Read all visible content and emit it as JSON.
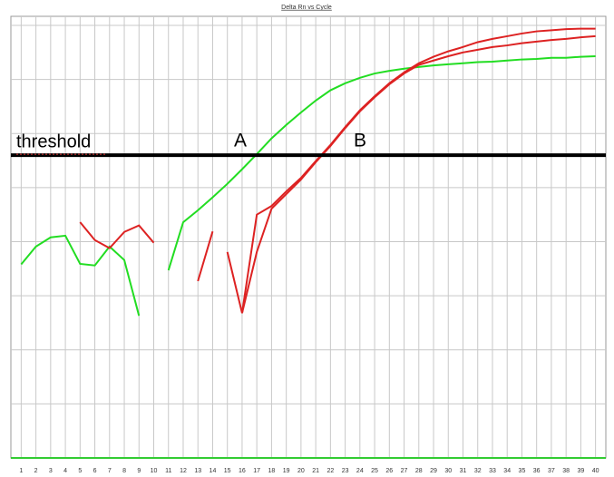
{
  "chart_data": {
    "type": "line",
    "title": "Delta Rn vs Cycle",
    "x": [
      1,
      2,
      3,
      4,
      5,
      6,
      7,
      8,
      9,
      10,
      11,
      12,
      13,
      14,
      15,
      16,
      17,
      18,
      19,
      20,
      21,
      22,
      23,
      24,
      25,
      26,
      27,
      28,
      29,
      30,
      31,
      32,
      33,
      34,
      35,
      36,
      37,
      38,
      39,
      40
    ],
    "xlim": [
      0.3,
      40.7
    ],
    "xticks": [
      1,
      2,
      3,
      4,
      5,
      6,
      7,
      8,
      9,
      10,
      11,
      12,
      13,
      14,
      15,
      16,
      17,
      18,
      19,
      20,
      21,
      22,
      23,
      24,
      25,
      26,
      27,
      28,
      29,
      30,
      31,
      32,
      33,
      34,
      35,
      36,
      37,
      38,
      39,
      40
    ],
    "ylim": [
      0,
      8
    ],
    "yticks": [
      0,
      1,
      2,
      3,
      4,
      5,
      6,
      7,
      8
    ],
    "grid": true,
    "series": [
      {
        "color": "#22dd22",
        "values": [
          3.58,
          3.91,
          4.08,
          4.11,
          3.59,
          3.56,
          3.91,
          3.66,
          2.63,
          null,
          3.47,
          4.36,
          4.58,
          4.82,
          5.07,
          5.34,
          5.62,
          5.91,
          6.16,
          6.39,
          6.61,
          6.8,
          6.93,
          7.03,
          7.11,
          7.16,
          7.2,
          7.23,
          7.26,
          7.28,
          7.3,
          7.32,
          7.33,
          7.35,
          7.37,
          7.38,
          7.4,
          7.4,
          7.42,
          7.43
        ]
      },
      {
        "color": "#dd2222",
        "values": [
          null,
          null,
          null,
          null,
          4.36,
          4.03,
          3.88,
          4.18,
          4.3,
          3.98,
          null,
          null,
          3.27,
          4.19,
          null,
          2.68,
          4.5,
          4.66,
          4.93,
          5.18,
          5.49,
          5.79,
          6.12,
          6.43,
          6.69,
          6.93,
          7.13,
          7.3,
          7.42,
          7.52,
          7.6,
          7.69,
          7.75,
          7.8,
          7.85,
          7.89,
          7.91,
          7.93,
          7.94,
          7.94
        ]
      },
      {
        "color": "#dd2222",
        "values": [
          null,
          null,
          null,
          null,
          null,
          null,
          null,
          null,
          null,
          null,
          null,
          null,
          null,
          null,
          3.81,
          2.68,
          3.81,
          4.61,
          4.88,
          5.15,
          5.47,
          5.77,
          6.1,
          6.41,
          6.67,
          6.91,
          7.11,
          7.27,
          7.35,
          7.43,
          7.5,
          7.55,
          7.6,
          7.63,
          7.67,
          7.7,
          7.73,
          7.75,
          7.78,
          7.8
        ]
      }
    ],
    "threshold": {
      "value": 5.6,
      "label": "threshold"
    },
    "annotations": [
      "A",
      "B"
    ]
  }
}
